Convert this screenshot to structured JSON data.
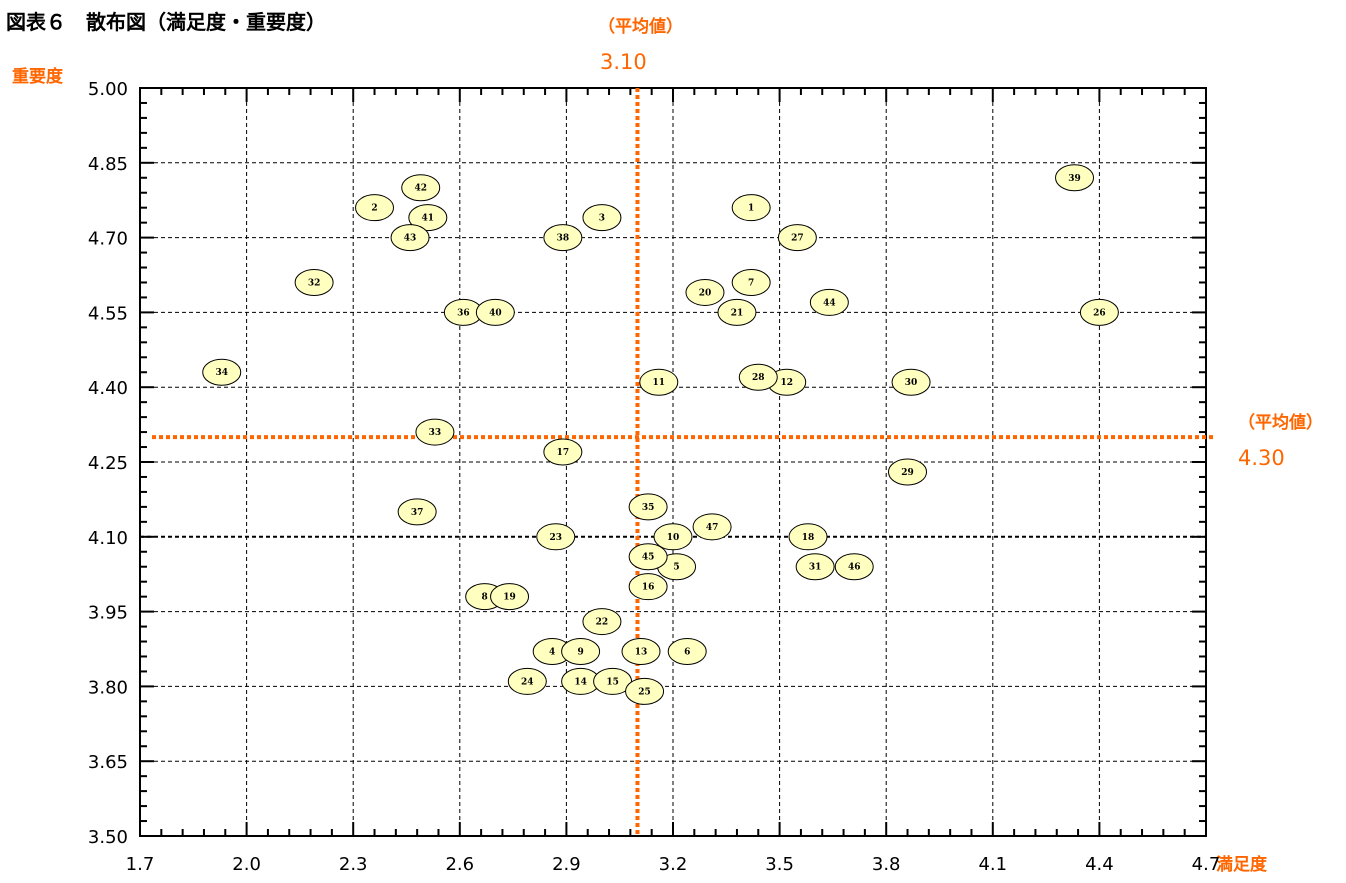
{
  "title": "図表６　散布図（満足度・重要度）",
  "avg_x": {
    "label": "（平均値）",
    "value_text": "3.10"
  },
  "avg_y": {
    "label": "（平均値）",
    "value_text": "4.30"
  },
  "colors": {
    "accent": "#ff6600",
    "point_fill": "#ffffc0",
    "grid": "#000000"
  },
  "chart_data": {
    "type": "scatter",
    "title": "図表６　散布図（満足度・重要度）",
    "xlabel": "満足度",
    "ylabel": "重要度",
    "xlim": [
      1.7,
      4.7
    ],
    "ylim": [
      3.5,
      5.0
    ],
    "x_ticks": [
      "1.7",
      "2.0",
      "2.3",
      "2.6",
      "2.9",
      "3.2",
      "3.5",
      "3.8",
      "4.1",
      "4.4",
      "4.7"
    ],
    "y_ticks": [
      "3.50",
      "3.65",
      "3.80",
      "3.95",
      "4.10",
      "4.25",
      "4.40",
      "4.55",
      "4.70",
      "4.85",
      "5.00"
    ],
    "grid": true,
    "reference_lines": {
      "x": 3.1,
      "y": 4.3
    },
    "points": [
      {
        "label": "1",
        "x": 3.42,
        "y": 4.76
      },
      {
        "label": "2",
        "x": 2.36,
        "y": 4.76
      },
      {
        "label": "3",
        "x": 3.0,
        "y": 4.74
      },
      {
        "label": "4",
        "x": 2.86,
        "y": 3.87
      },
      {
        "label": "5",
        "x": 3.21,
        "y": 4.04
      },
      {
        "label": "6",
        "x": 3.24,
        "y": 3.87
      },
      {
        "label": "7",
        "x": 3.42,
        "y": 4.61
      },
      {
        "label": "8",
        "x": 2.67,
        "y": 3.98
      },
      {
        "label": "9",
        "x": 2.94,
        "y": 3.87
      },
      {
        "label": "10",
        "x": 3.2,
        "y": 4.1
      },
      {
        "label": "11",
        "x": 3.16,
        "y": 4.41
      },
      {
        "label": "12",
        "x": 3.52,
        "y": 4.41
      },
      {
        "label": "13",
        "x": 3.11,
        "y": 3.87
      },
      {
        "label": "14",
        "x": 2.94,
        "y": 3.81
      },
      {
        "label": "15",
        "x": 3.03,
        "y": 3.81
      },
      {
        "label": "16",
        "x": 3.13,
        "y": 4.0
      },
      {
        "label": "17",
        "x": 2.89,
        "y": 4.27
      },
      {
        "label": "18",
        "x": 3.58,
        "y": 4.1
      },
      {
        "label": "19",
        "x": 2.74,
        "y": 3.98
      },
      {
        "label": "20",
        "x": 3.29,
        "y": 4.59
      },
      {
        "label": "21",
        "x": 3.38,
        "y": 4.55
      },
      {
        "label": "22",
        "x": 3.0,
        "y": 3.93
      },
      {
        "label": "23",
        "x": 2.87,
        "y": 4.1
      },
      {
        "label": "24",
        "x": 2.79,
        "y": 3.81
      },
      {
        "label": "25",
        "x": 3.12,
        "y": 3.79
      },
      {
        "label": "26",
        "x": 4.4,
        "y": 4.55
      },
      {
        "label": "27",
        "x": 3.55,
        "y": 4.7
      },
      {
        "label": "28",
        "x": 3.44,
        "y": 4.42
      },
      {
        "label": "29",
        "x": 3.86,
        "y": 4.23
      },
      {
        "label": "30",
        "x": 3.87,
        "y": 4.41
      },
      {
        "label": "31",
        "x": 3.6,
        "y": 4.04
      },
      {
        "label": "32",
        "x": 2.19,
        "y": 4.61
      },
      {
        "label": "33",
        "x": 2.53,
        "y": 4.31
      },
      {
        "label": "34",
        "x": 1.93,
        "y": 4.43
      },
      {
        "label": "35",
        "x": 3.13,
        "y": 4.16
      },
      {
        "label": "36",
        "x": 2.61,
        "y": 4.55
      },
      {
        "label": "37",
        "x": 2.48,
        "y": 4.15
      },
      {
        "label": "38",
        "x": 2.89,
        "y": 4.7
      },
      {
        "label": "39",
        "x": 4.33,
        "y": 4.82
      },
      {
        "label": "40",
        "x": 2.7,
        "y": 4.55
      },
      {
        "label": "41",
        "x": 2.51,
        "y": 4.74
      },
      {
        "label": "42",
        "x": 2.49,
        "y": 4.8
      },
      {
        "label": "43",
        "x": 2.46,
        "y": 4.7
      },
      {
        "label": "44",
        "x": 3.64,
        "y": 4.57
      },
      {
        "label": "45",
        "x": 3.13,
        "y": 4.06
      },
      {
        "label": "46",
        "x": 3.71,
        "y": 4.04
      },
      {
        "label": "47",
        "x": 3.31,
        "y": 4.12
      }
    ]
  }
}
